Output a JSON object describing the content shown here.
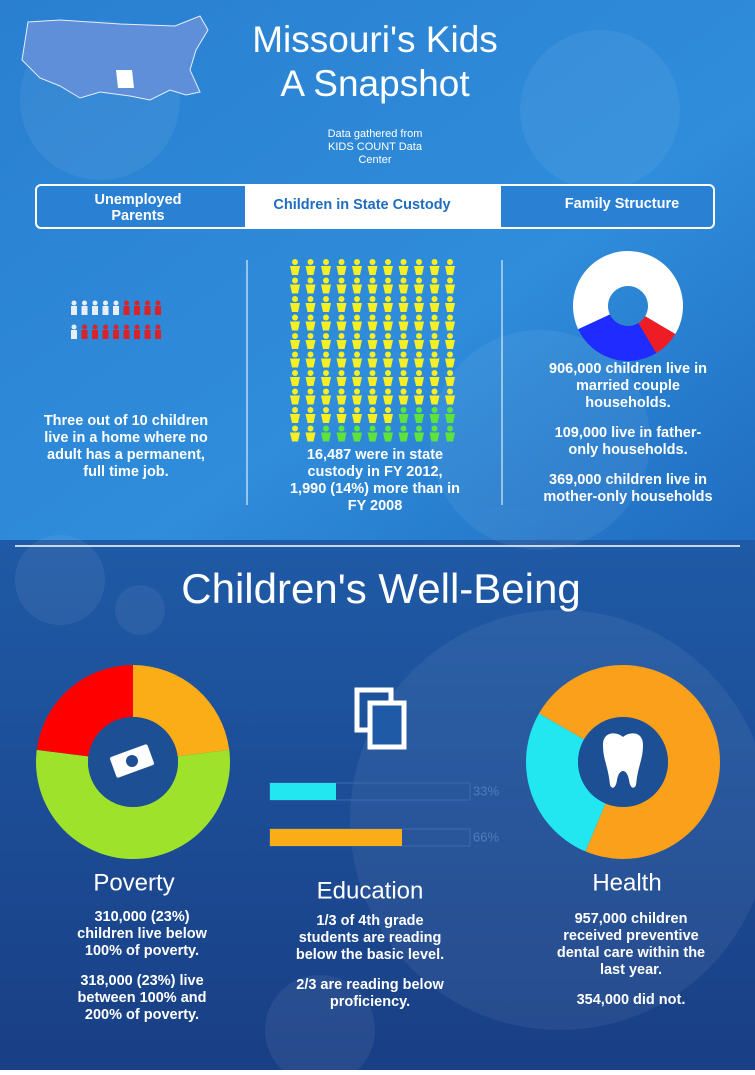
{
  "header": {
    "title_lines": [
      "Missouri's Kids",
      "A Snapshot"
    ],
    "source_lines": [
      "Data gathered from",
      "KIDS COUNT Data",
      "Center"
    ]
  },
  "tabs": [
    {
      "lines": [
        "Unemployed",
        "Parents"
      ]
    },
    {
      "lines": [
        "Children in State Custody"
      ]
    },
    {
      "lines": [
        "Family Structure"
      ]
    }
  ],
  "unemployed": {
    "text_lines": [
      "Three out of 10 children",
      "live in a home where no",
      "adult has a permanent,",
      "full time job."
    ]
  },
  "custody": {
    "text_lines": [
      "16,487 were in state",
      "custody in FY 2012,",
      "1,990 (14%) more than in",
      "FY 2008"
    ]
  },
  "family": {
    "chart": {
      "type": "pie",
      "values": [
        906000,
        109000,
        369000
      ],
      "colors": [
        "#ffffff",
        "#ee1c25",
        "#1f2bff"
      ]
    },
    "paragraphs": [
      [
        "906,000 children live in",
        "married couple",
        "households."
      ],
      [
        "109,000 live in father-",
        "only households."
      ],
      [
        "369,000 children live in",
        "mother-only households"
      ]
    ]
  },
  "wellbeing": {
    "title": "Children's Well-Being",
    "poverty": {
      "title": "Poverty",
      "chart": {
        "type": "pie",
        "values": [
          23,
          54,
          23
        ],
        "colors": [
          "#fbad18",
          "#9ee22b",
          "#ff0000"
        ]
      },
      "paragraphs": [
        [
          "310,000 (23%)",
          "children live below",
          "100% of poverty."
        ],
        [
          "318,000 (23%) live",
          "between 100% and",
          "200% of poverty."
        ]
      ]
    },
    "education": {
      "title": "Education",
      "chart": {
        "type": "bar",
        "values": [
          33,
          66
        ],
        "value_labels": [
          "33%",
          "66%"
        ],
        "colors": [
          "#22e6f0",
          "#fbad18"
        ],
        "xlim": [
          0,
          100
        ]
      },
      "paragraphs": [
        [
          "1/3 of 4th grade",
          "students are reading",
          "below the basic level."
        ],
        [
          "2/3 are reading below",
          "proficiency."
        ]
      ]
    },
    "health": {
      "title": "Health",
      "chart": {
        "type": "pie",
        "values": [
          957000,
          354000
        ],
        "colors": [
          "#fba01a",
          "#22e6f0"
        ]
      },
      "paragraphs": [
        [
          "957,000 children",
          "received preventive",
          "dental care within the",
          "last year."
        ],
        [
          "354,000 did not."
        ]
      ]
    }
  }
}
